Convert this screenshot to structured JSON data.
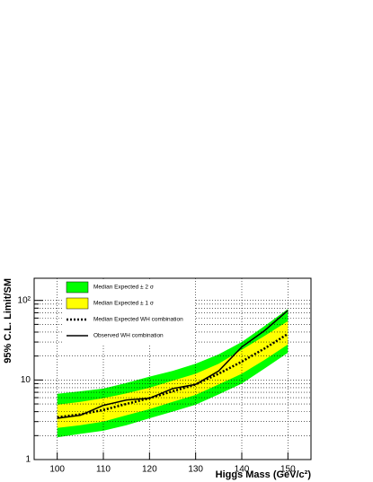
{
  "chart_data": {
    "type": "band-limit",
    "x_label": "Higgs Mass (GeV/c²)",
    "y_label": "95% C.L. Limit/SM",
    "x": [
      100,
      105,
      110,
      115,
      120,
      125,
      130,
      135,
      140,
      145,
      150
    ],
    "xlim": [
      95,
      155
    ],
    "xticks": [
      100,
      110,
      120,
      130,
      140,
      150
    ],
    "ylim": [
      1,
      190
    ],
    "ylog": true,
    "yticks": [
      1,
      10,
      {
        "value": 100,
        "label": "10²"
      }
    ],
    "yminorticks": [
      2,
      3,
      4,
      5,
      6,
      7,
      8,
      9,
      20,
      30,
      40,
      50,
      60,
      70,
      80,
      90
    ],
    "grid": true,
    "bands": [
      {
        "name": "Median Expected ± 2 σ",
        "color": "#00ff00",
        "lower": [
          1.9,
          2.1,
          2.3,
          2.7,
          3.3,
          4.0,
          4.9,
          6.6,
          9,
          14,
          22
        ],
        "upper": [
          6.7,
          7.2,
          7.8,
          9.2,
          11,
          13,
          16,
          21,
          30,
          48,
          78
        ]
      },
      {
        "name": "Median Expected ± 1 σ",
        "color": "#ffff00",
        "lower": [
          2.5,
          2.7,
          3.0,
          3.6,
          4.3,
          5.3,
          6.5,
          8.8,
          12,
          18,
          28
        ],
        "upper": [
          4.9,
          5.3,
          5.9,
          6.8,
          8,
          9.8,
          12,
          16,
          24,
          36,
          55
        ]
      }
    ],
    "series": [
      {
        "name": "Median Expected WH combination",
        "color": "#000000",
        "dashed": true,
        "values": [
          3.4,
          3.7,
          4.2,
          5.0,
          5.9,
          7.2,
          8.8,
          12,
          17,
          25,
          38
        ]
      },
      {
        "name": "Observed WH combination",
        "color": "#000000",
        "dashed": false,
        "values": [
          3.3,
          3.6,
          4.8,
          5.6,
          5.9,
          7.8,
          8.8,
          13,
          26,
          42,
          75
        ]
      }
    ]
  }
}
